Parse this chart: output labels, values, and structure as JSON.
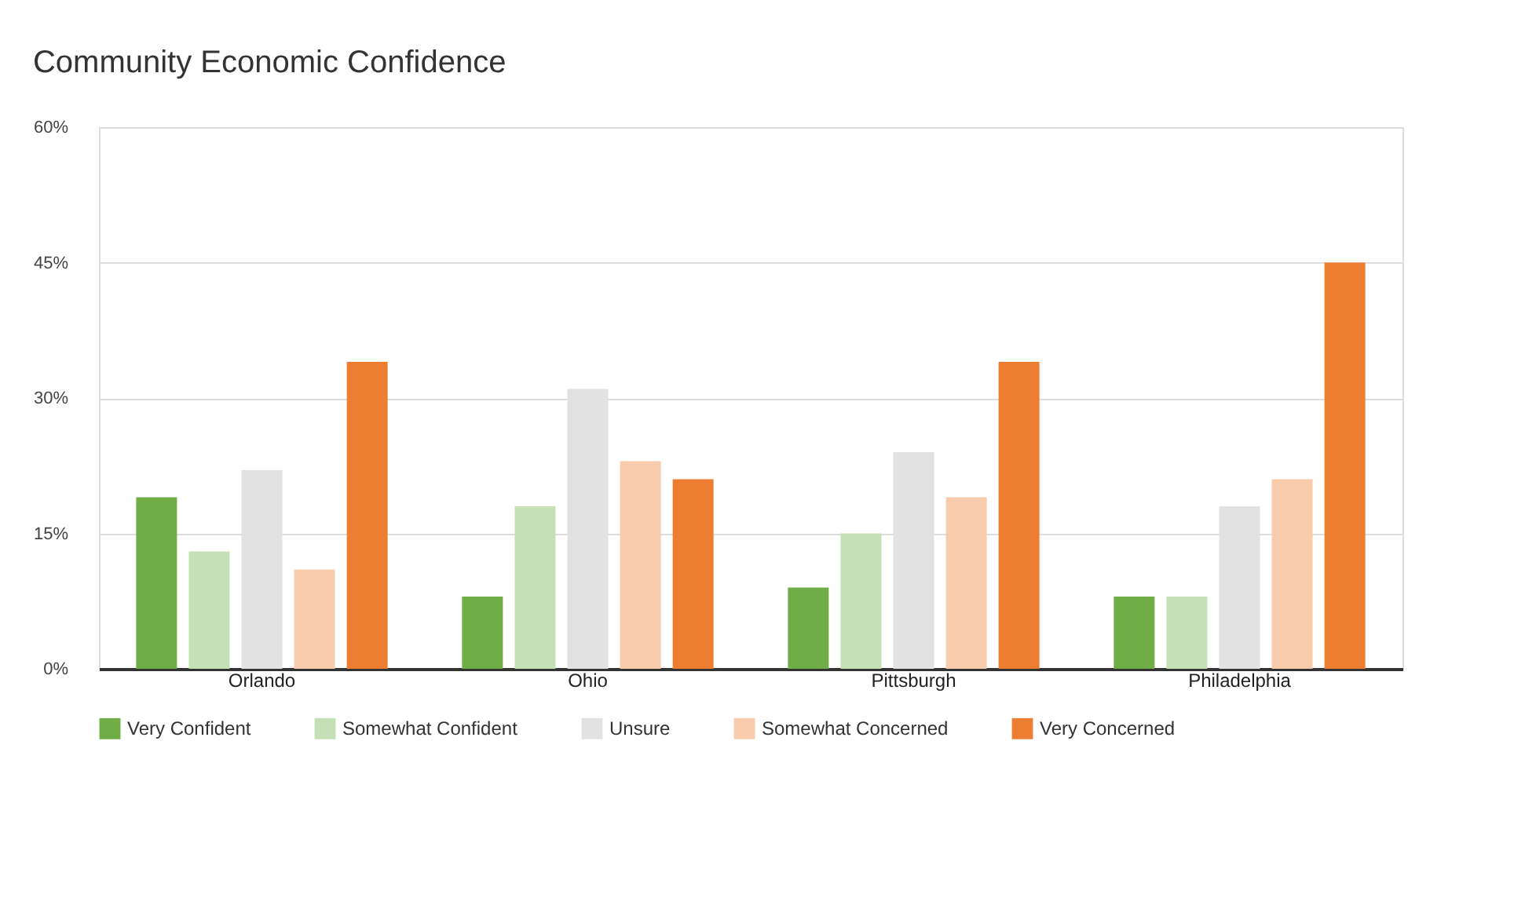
{
  "chart_data": {
    "type": "bar",
    "title": "Community Economic Confidence",
    "categories": [
      "Orlando",
      "Ohio",
      "Pittsburgh",
      "Philadelphia"
    ],
    "series": [
      {
        "name": "Very Confident",
        "color": "#70ad47",
        "values": [
          19,
          8,
          9,
          8
        ]
      },
      {
        "name": "Somewhat Confident",
        "color": "#c5e0b4",
        "values": [
          13,
          18,
          15,
          8
        ]
      },
      {
        "name": "Unsure",
        "color": "#e2e2e2",
        "values": [
          22,
          31,
          24,
          18
        ]
      },
      {
        "name": "Somewhat Concerned",
        "color": "#f8cbad",
        "values": [
          11,
          23,
          19,
          21
        ]
      },
      {
        "name": "Very Concerned",
        "color": "#ed7d31",
        "values": [
          34,
          21,
          34,
          45
        ]
      }
    ],
    "ylim": [
      0,
      60
    ],
    "yticks": [
      {
        "value": 0,
        "label": "0%"
      },
      {
        "value": 15,
        "label": "15%"
      },
      {
        "value": 30,
        "label": "30%"
      },
      {
        "value": 45,
        "label": "45%"
      },
      {
        "value": 60,
        "label": "60%"
      }
    ],
    "grid": "y",
    "legend": "bottom"
  }
}
